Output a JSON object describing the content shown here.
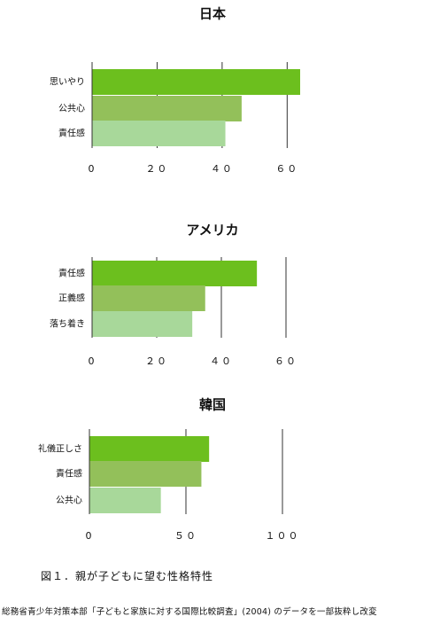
{
  "caption": "図１．親が子どもに望む性格特性",
  "source": "総務省青少年対策本部「子どもと家族に対する国際比較調査」(2004) のデータを一部抜粋し改変",
  "colors": [
    "#6cbf1e",
    "#93c05a",
    "#a8d89a"
  ],
  "chart_data": [
    {
      "type": "bar",
      "orientation": "horizontal",
      "title": "日本",
      "categories": [
        "思いやり",
        "公共心",
        "責任感"
      ],
      "values": [
        64,
        46,
        41
      ],
      "xlim": [
        0,
        64
      ],
      "ticks": [
        {
          "value": 0,
          "label": "0"
        },
        {
          "value": 20,
          "label": "２０"
        },
        {
          "value": 40,
          "label": "４０"
        },
        {
          "value": 60,
          "label": "６０"
        }
      ],
      "grid": true
    },
    {
      "type": "bar",
      "orientation": "horizontal",
      "title": "アメリカ",
      "categories": [
        "責任感",
        "正義感",
        "落ち着き"
      ],
      "values": [
        51,
        35,
        31
      ],
      "xlim": [
        0,
        60
      ],
      "ticks": [
        {
          "value": 0,
          "label": "0"
        },
        {
          "value": 20,
          "label": "２０"
        },
        {
          "value": 40,
          "label": "４０"
        },
        {
          "value": 60,
          "label": "６０"
        }
      ],
      "grid": true
    },
    {
      "type": "bar",
      "orientation": "horizontal",
      "title": "韓国",
      "categories": [
        "礼儀正しさ",
        "責任感",
        "公共心"
      ],
      "values": [
        62,
        58,
        37
      ],
      "xlim": [
        0,
        100
      ],
      "ticks": [
        {
          "value": 0,
          "label": "0"
        },
        {
          "value": 50,
          "label": "５０"
        },
        {
          "value": 100,
          "label": "１００"
        }
      ],
      "grid": true
    }
  ]
}
